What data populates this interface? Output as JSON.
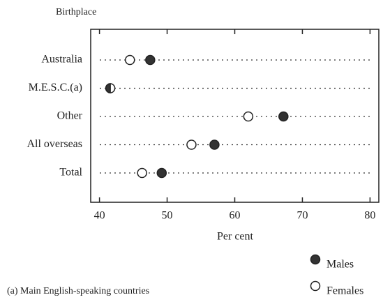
{
  "chart_data": {
    "type": "dot",
    "ylabel": "Birthplace",
    "xlabel": "Per cent",
    "footnote": "(a) Main English-speaking countries",
    "categories": [
      "Australia",
      "M.E.S.C.(a)",
      "Other",
      "All overseas",
      "Total"
    ],
    "series": [
      {
        "name": "Males",
        "color": "#333333",
        "values": [
          47.5,
          41.6,
          67.2,
          57.0,
          49.2
        ]
      },
      {
        "name": "Females",
        "color": "#ffffff",
        "values": [
          44.5,
          41.6,
          62.0,
          53.6,
          46.3
        ]
      }
    ],
    "xlim": [
      38.7,
      81.3
    ],
    "xticks": [
      40,
      50,
      60,
      70,
      80
    ],
    "grid": true
  }
}
